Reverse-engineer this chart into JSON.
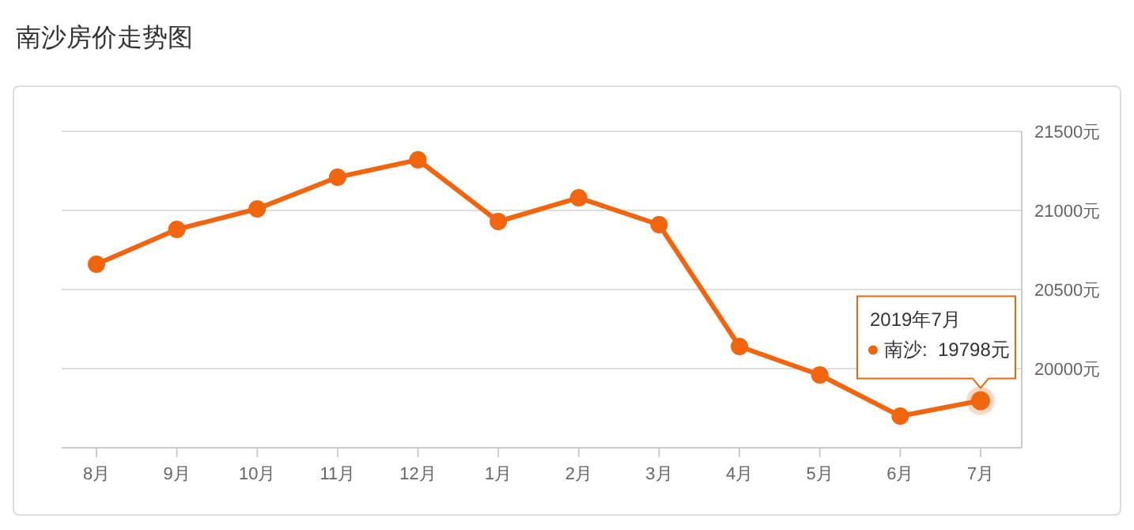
{
  "chart_data": {
    "type": "line",
    "title": "南沙房价走势图",
    "categories": [
      "8月",
      "9月",
      "10月",
      "11月",
      "12月",
      "1月",
      "2月",
      "3月",
      "4月",
      "5月",
      "6月",
      "7月"
    ],
    "series": [
      {
        "color": "#f0650e",
        "values": [
          20660,
          20880,
          21010,
          21210,
          21320,
          20930,
          21080,
          20910,
          20140,
          19960,
          19700,
          19798
        ]
      }
    ],
    "ylim": [
      19500,
      21500
    ],
    "yticks": [
      {
        "value": 20000,
        "label": "20000元"
      },
      {
        "value": 20500,
        "label": "20500元"
      },
      {
        "value": 21000,
        "label": "21000元"
      },
      {
        "value": 21500,
        "label": "21500元"
      }
    ],
    "grid": "y",
    "marker": "circle",
    "line_style": "solid",
    "legend": false,
    "annotations": [
      "2019年7月",
      {
        "text": "南沙:  19798元",
        "x": "7月",
        "y": 19798
      }
    ]
  }
}
